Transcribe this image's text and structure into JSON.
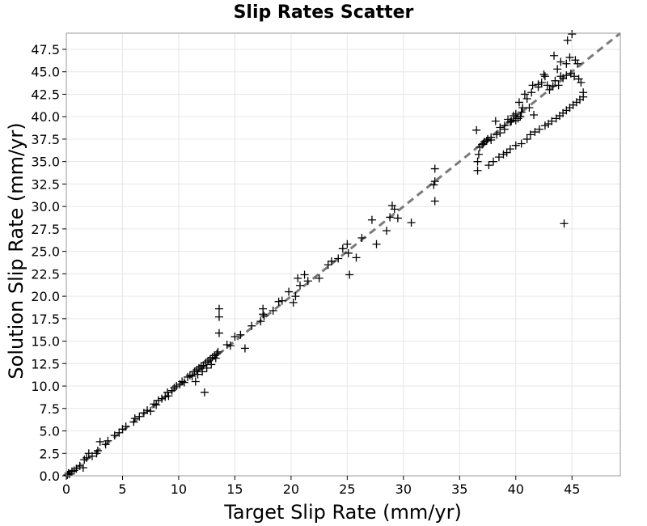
{
  "chart_data": {
    "type": "scatter",
    "title": "Slip Rates Scatter",
    "xlabel": "Target Slip Rate (mm/yr)",
    "ylabel": "Solution Slip Rate (mm/yr)",
    "xlim": [
      0,
      49.3
    ],
    "ylim": [
      0,
      49.3
    ],
    "x_ticks": [
      "0",
      "5",
      "10",
      "15",
      "20",
      "25",
      "30",
      "35",
      "40",
      "45"
    ],
    "y_ticks": [
      "0.0",
      "2.5",
      "5.0",
      "7.5",
      "10.0",
      "12.5",
      "15.0",
      "17.5",
      "20.0",
      "22.5",
      "25.0",
      "27.5",
      "30.0",
      "32.5",
      "35.0",
      "37.5",
      "40.0",
      "42.5",
      "45.0",
      "47.5"
    ],
    "grid": true,
    "marker": "+",
    "marker_color": "#000000",
    "reference_line": {
      "style": "dashed",
      "color": "#7a7a7a",
      "from": [
        0,
        0
      ],
      "to": [
        49.3,
        49.3
      ]
    },
    "series": [
      {
        "points": [
          [
            0.1,
            0.1
          ],
          [
            0.2,
            0.3
          ],
          [
            0.3,
            0.2
          ],
          [
            0.5,
            0.5
          ],
          [
            0.7,
            0.6
          ],
          [
            0.9,
            0.8
          ],
          [
            1.2,
            1.1
          ],
          [
            1.5,
            0.9
          ],
          [
            1.6,
            1.8
          ],
          [
            1.8,
            2.0
          ],
          [
            2.0,
            2.5
          ],
          [
            2.3,
            2.2
          ],
          [
            2.7,
            2.5
          ],
          [
            2.8,
            2.8
          ],
          [
            3.0,
            3.8
          ],
          [
            3.5,
            3.5
          ],
          [
            3.7,
            3.9
          ],
          [
            4.3,
            4.5
          ],
          [
            4.7,
            4.8
          ],
          [
            5.0,
            5.2
          ],
          [
            5.3,
            5.5
          ],
          [
            6.0,
            6.0
          ],
          [
            6.1,
            6.4
          ],
          [
            6.5,
            6.6
          ],
          [
            6.9,
            7.0
          ],
          [
            7.2,
            7.3
          ],
          [
            7.5,
            7.2
          ],
          [
            7.8,
            8.0
          ],
          [
            8.2,
            8.4
          ],
          [
            8.0,
            7.9
          ],
          [
            8.5,
            8.6
          ],
          [
            8.8,
            8.8
          ],
          [
            9.0,
            9.3
          ],
          [
            9.1,
            8.9
          ],
          [
            9.4,
            9.5
          ],
          [
            9.6,
            9.8
          ],
          [
            9.8,
            10.0
          ],
          [
            10.1,
            10.2
          ],
          [
            10.3,
            10.5
          ],
          [
            10.5,
            10.4
          ],
          [
            10.8,
            11.0
          ],
          [
            11.0,
            11.2
          ],
          [
            11.2,
            11.1
          ],
          [
            11.4,
            11.6
          ],
          [
            11.6,
            11.8
          ],
          [
            11.8,
            12.0
          ],
          [
            12.0,
            12.2
          ],
          [
            12.2,
            12.3
          ],
          [
            12.4,
            12.6
          ],
          [
            12.6,
            12.8
          ],
          [
            12.8,
            13.0
          ],
          [
            13.0,
            13.2
          ],
          [
            13.2,
            13.4
          ],
          [
            13.4,
            13.6
          ],
          [
            13.5,
            13.8
          ],
          [
            13.3,
            13.1
          ],
          [
            12.9,
            12.4
          ],
          [
            12.5,
            12.0
          ],
          [
            12.1,
            11.6
          ],
          [
            11.7,
            11.3
          ],
          [
            12.3,
            9.3
          ],
          [
            11.5,
            10.5
          ],
          [
            13.6,
            17.7
          ],
          [
            13.6,
            18.6
          ],
          [
            13.6,
            15.9
          ],
          [
            14.3,
            14.6
          ],
          [
            14.6,
            14.5
          ],
          [
            15.0,
            15.5
          ],
          [
            15.5,
            15.7
          ],
          [
            15.9,
            14.2
          ],
          [
            16.5,
            16.7
          ],
          [
            17.3,
            17.2
          ],
          [
            17.5,
            18.0
          ],
          [
            17.5,
            18.6
          ],
          [
            17.6,
            17.8
          ],
          [
            18.4,
            18.4
          ],
          [
            18.9,
            19.4
          ],
          [
            19.2,
            19.5
          ],
          [
            19.8,
            20.5
          ],
          [
            20.2,
            19.3
          ],
          [
            20.4,
            20.0
          ],
          [
            20.6,
            22.0
          ],
          [
            20.8,
            21.2
          ],
          [
            21.2,
            22.4
          ],
          [
            21.5,
            21.7
          ],
          [
            22.5,
            22.0
          ],
          [
            23.3,
            23.5
          ],
          [
            23.6,
            23.9
          ],
          [
            24.2,
            24.2
          ],
          [
            24.6,
            25.3
          ],
          [
            25.0,
            25.8
          ],
          [
            25.1,
            24.8
          ],
          [
            25.2,
            22.4
          ],
          [
            25.8,
            24.3
          ],
          [
            26.3,
            26.5
          ],
          [
            27.2,
            28.5
          ],
          [
            27.6,
            25.8
          ],
          [
            28.5,
            27.3
          ],
          [
            28.8,
            28.8
          ],
          [
            29.0,
            30.1
          ],
          [
            29.2,
            29.7
          ],
          [
            29.5,
            28.7
          ],
          [
            30.7,
            28.2
          ],
          [
            32.8,
            34.2
          ],
          [
            32.8,
            32.8
          ],
          [
            32.7,
            32.4
          ],
          [
            32.8,
            30.6
          ],
          [
            36.5,
            38.5
          ],
          [
            36.6,
            34.0
          ],
          [
            36.6,
            35.0
          ],
          [
            36.7,
            35.8
          ],
          [
            36.8,
            36.6
          ],
          [
            37.0,
            36.9
          ],
          [
            37.2,
            37.2
          ],
          [
            37.5,
            37.5
          ],
          [
            37.6,
            34.6
          ],
          [
            37.8,
            37.7
          ],
          [
            38.0,
            35.0
          ],
          [
            38.2,
            39.5
          ],
          [
            38.5,
            35.5
          ],
          [
            38.6,
            38.2
          ],
          [
            38.9,
            35.8
          ],
          [
            39.0,
            38.6
          ],
          [
            39.2,
            36.0
          ],
          [
            39.3,
            39.7
          ],
          [
            39.5,
            36.4
          ],
          [
            39.6,
            39.5
          ],
          [
            39.8,
            40.1
          ],
          [
            40.0,
            39.6
          ],
          [
            40.0,
            36.8
          ],
          [
            40.2,
            39.8
          ],
          [
            40.3,
            41.6
          ],
          [
            40.4,
            40.0
          ],
          [
            40.6,
            41.0
          ],
          [
            40.5,
            37.0
          ],
          [
            40.8,
            42.5
          ],
          [
            41.0,
            37.5
          ],
          [
            41.2,
            41.0
          ],
          [
            41.3,
            38.0
          ],
          [
            41.5,
            43.5
          ],
          [
            41.6,
            40.2
          ],
          [
            41.7,
            38.3
          ],
          [
            42.0,
            43.6
          ],
          [
            42.1,
            38.6
          ],
          [
            42.3,
            43.8
          ],
          [
            42.5,
            44.7
          ],
          [
            42.6,
            39.0
          ],
          [
            42.8,
            43.5
          ],
          [
            42.9,
            39.2
          ],
          [
            43.0,
            43.0
          ],
          [
            43.2,
            39.5
          ],
          [
            43.3,
            43.4
          ],
          [
            43.4,
            46.8
          ],
          [
            43.5,
            44.0
          ],
          [
            43.6,
            39.8
          ],
          [
            43.8,
            43.5
          ],
          [
            43.9,
            40.1
          ],
          [
            44.0,
            44.5
          ],
          [
            44.2,
            40.4
          ],
          [
            44.2,
            44.3
          ],
          [
            44.3,
            28.1
          ],
          [
            44.5,
            40.7
          ],
          [
            44.5,
            44.6
          ],
          [
            44.6,
            48.5
          ],
          [
            44.8,
            41.0
          ],
          [
            44.9,
            44.8
          ],
          [
            45.0,
            49.2
          ],
          [
            45.1,
            41.3
          ],
          [
            45.2,
            44.5
          ],
          [
            45.4,
            41.6
          ],
          [
            45.5,
            45.9
          ],
          [
            45.6,
            44.2
          ],
          [
            45.7,
            41.9
          ],
          [
            45.8,
            43.8
          ],
          [
            46.0,
            42.2
          ],
          [
            46.0,
            42.7
          ],
          [
            43.7,
            45.3
          ],
          [
            44.0,
            46.1
          ],
          [
            44.5,
            45.9
          ],
          [
            44.8,
            46.6
          ],
          [
            45.3,
            46.3
          ],
          [
            42.6,
            44.5
          ],
          [
            42.0,
            43.3
          ],
          [
            41.4,
            42.7
          ],
          [
            41.0,
            42.0
          ],
          [
            40.5,
            40.5
          ],
          [
            40.0,
            40.3
          ],
          [
            39.5,
            39.4
          ],
          [
            39.0,
            39.0
          ],
          [
            38.6,
            38.8
          ],
          [
            38.3,
            38.0
          ],
          [
            37.8,
            37.4
          ],
          [
            37.4,
            37.3
          ],
          [
            37.1,
            37.0
          ]
        ]
      }
    ]
  }
}
